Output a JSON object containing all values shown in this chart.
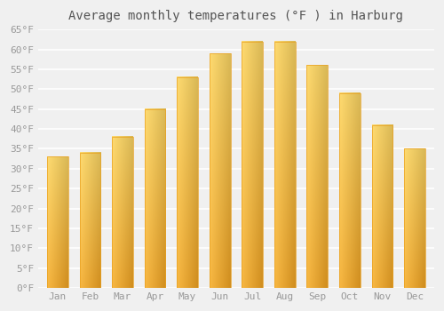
{
  "title": "Average monthly temperatures (°F ) in Harburg",
  "months": [
    "Jan",
    "Feb",
    "Mar",
    "Apr",
    "May",
    "Jun",
    "Jul",
    "Aug",
    "Sep",
    "Oct",
    "Nov",
    "Dec"
  ],
  "values": [
    33,
    34,
    38,
    45,
    53,
    59,
    62,
    62,
    56,
    49,
    41,
    35
  ],
  "bar_color_bottom": "#F5A623",
  "bar_color_top": "#FFD966",
  "bar_color_left_highlight": "#FFE08A",
  "ylim": [
    0,
    65
  ],
  "yticks": [
    0,
    5,
    10,
    15,
    20,
    25,
    30,
    35,
    40,
    45,
    50,
    55,
    60,
    65
  ],
  "ytick_labels": [
    "0°F",
    "5°F",
    "10°F",
    "15°F",
    "20°F",
    "25°F",
    "30°F",
    "35°F",
    "40°F",
    "45°F",
    "50°F",
    "55°F",
    "60°F",
    "65°F"
  ],
  "background_color": "#f0f0f0",
  "grid_color": "#ffffff",
  "title_fontsize": 10,
  "tick_fontsize": 8,
  "bar_width": 0.65
}
